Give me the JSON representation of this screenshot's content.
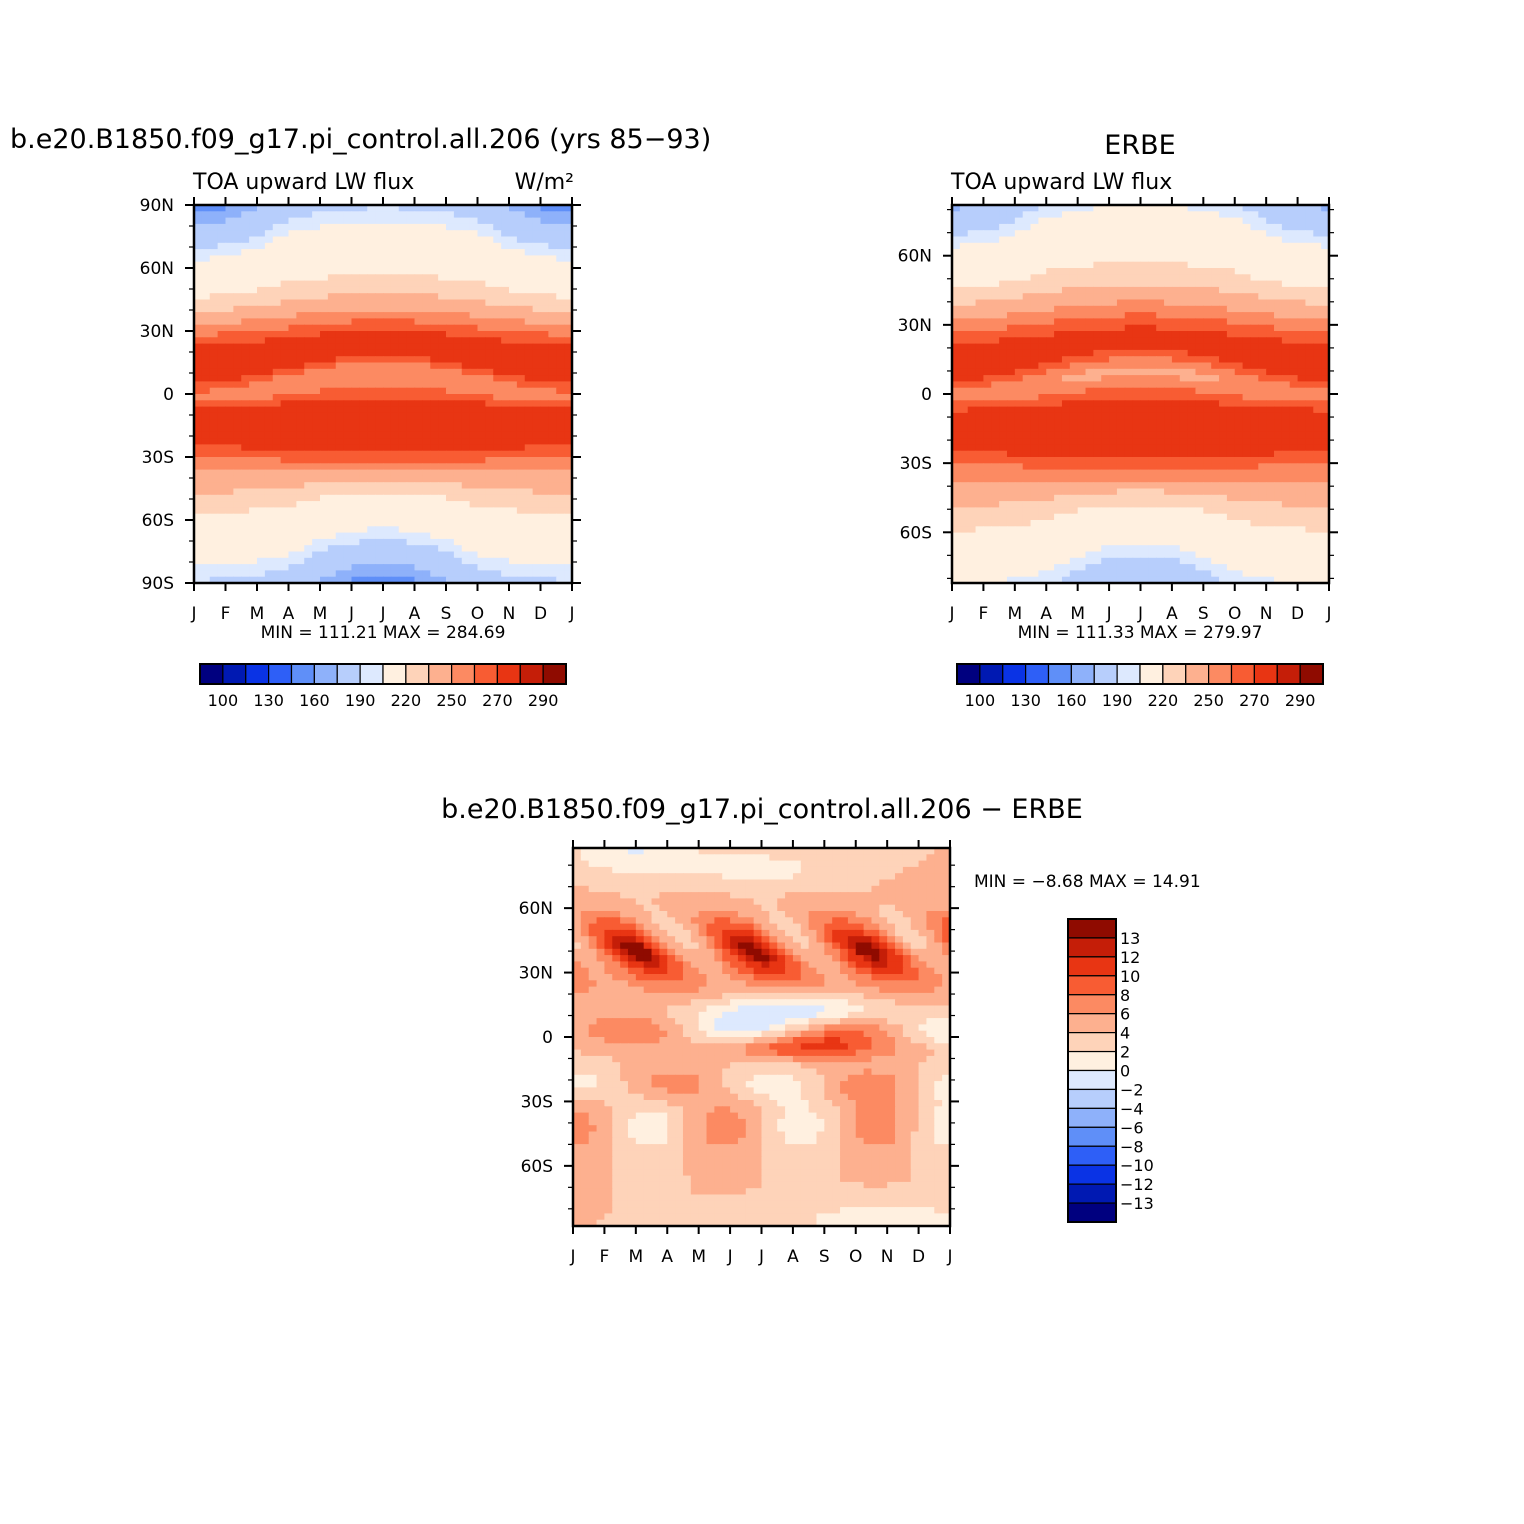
{
  "palette": {
    "base": [
      "#00007f",
      "#0019b2",
      "#0a33e5",
      "#2e5ff7",
      "#5f8ff8",
      "#8eb1fa",
      "#b7cefc",
      "#dde9fe",
      "#fff0e0",
      "#fed3b9",
      "#fdb08f",
      "#fc8a62",
      "#f85c33",
      "#e83513",
      "#c51e08",
      "#8f0b00"
    ],
    "diff": [
      "#00007f",
      "#0019b2",
      "#0a33e5",
      "#2e5ff7",
      "#5f8ff8",
      "#8eb1fa",
      "#b7cefc",
      "#dde9fe",
      "#fff0e0",
      "#fed3b9",
      "#fdb08f",
      "#fc8a62",
      "#f85c33",
      "#e83513",
      "#c51e08",
      "#8f0b00"
    ]
  },
  "chart_data": [
    {
      "type": "heatmap",
      "id": "model",
      "title": "b.e20.B1850.f09_g17.pi_control.all.206 (yrs 85−93)",
      "left_label": "TOA upward LW flux",
      "right_label": "W/m²",
      "x_tick_labels": [
        "J",
        "F",
        "M",
        "A",
        "M",
        "J",
        "J",
        "A",
        "S",
        "O",
        "N",
        "D",
        "J"
      ],
      "y_ticks": [
        {
          "value": 90,
          "label": "90N"
        },
        {
          "value": 60,
          "label": "60N"
        },
        {
          "value": 30,
          "label": "30N"
        },
        {
          "value": 0,
          "label": "0"
        },
        {
          "value": -30,
          "label": "30S"
        },
        {
          "value": -60,
          "label": "60S"
        },
        {
          "value": -90,
          "label": "90S"
        }
      ],
      "ylim": [
        -90,
        90
      ],
      "xlim": [
        0,
        12
      ],
      "stats": {
        "min_label": "MIN",
        "min": "111.21",
        "max_label": "MAX",
        "max": "284.69"
      },
      "levels": [
        100,
        110,
        120,
        130,
        140,
        150,
        160,
        180,
        190,
        200,
        220,
        230,
        240,
        250,
        260,
        270,
        280,
        290
      ],
      "colorbar": {
        "orientation": "horizontal",
        "labels": [
          "100",
          "130",
          "160",
          "190",
          "220",
          "250",
          "270",
          "290"
        ]
      }
    },
    {
      "type": "heatmap",
      "id": "obs",
      "title": "ERBE",
      "left_label": "TOA upward LW flux",
      "x_tick_labels": [
        "J",
        "F",
        "M",
        "A",
        "M",
        "J",
        "J",
        "A",
        "S",
        "O",
        "N",
        "D",
        "J"
      ],
      "y_ticks": [
        {
          "value": 60,
          "label": "60N"
        },
        {
          "value": 30,
          "label": "30N"
        },
        {
          "value": 0,
          "label": "0"
        },
        {
          "value": -30,
          "label": "30S"
        },
        {
          "value": -60,
          "label": "60S"
        }
      ],
      "ylim": [
        -82,
        82
      ],
      "xlim": [
        0,
        12
      ],
      "stats": {
        "min_label": "MIN",
        "min": "111.33",
        "max_label": "MAX",
        "max": "279.97"
      },
      "colorbar": {
        "orientation": "horizontal",
        "labels": [
          "100",
          "130",
          "160",
          "190",
          "220",
          "250",
          "270",
          "290"
        ]
      }
    },
    {
      "type": "heatmap",
      "id": "diff",
      "title": "b.e20.B1850.f09_g17.pi_control.all.206 − ERBE",
      "x_tick_labels": [
        "J",
        "F",
        "M",
        "A",
        "M",
        "J",
        "J",
        "A",
        "S",
        "O",
        "N",
        "D",
        "J"
      ],
      "y_ticks": [
        {
          "value": 60,
          "label": "60N"
        },
        {
          "value": 30,
          "label": "30N"
        },
        {
          "value": 0,
          "label": "0"
        },
        {
          "value": -30,
          "label": "30S"
        },
        {
          "value": -60,
          "label": "60S"
        }
      ],
      "ylim": [
        -88,
        88
      ],
      "xlim": [
        0,
        12
      ],
      "stats": {
        "min_label": "MIN =",
        "min": "−8.68",
        "max_label": "MAX =",
        "max": "14.91"
      },
      "colorbar": {
        "orientation": "vertical",
        "labels": [
          "13",
          "12",
          "10",
          "8",
          "6",
          "4",
          "2",
          "0",
          "−2",
          "−4",
          "−6",
          "−8",
          "−10",
          "−12",
          "−13"
        ]
      }
    }
  ]
}
